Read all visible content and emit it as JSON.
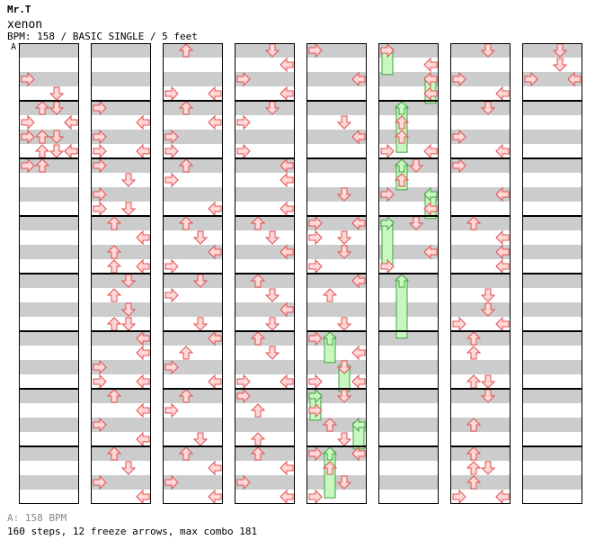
{
  "header": {
    "artist": "Mr.T",
    "title": "xenon",
    "info": "BPM: 158 / BASIC SINGLE / 5 feet"
  },
  "bpm_marker": {
    "label": "A"
  },
  "footer": {
    "bpm_legend": "A: 158 BPM",
    "stats": "160 steps, 12 freeze arrows, max combo 181"
  },
  "colors": {
    "arrow_fill": "#ffd8d8",
    "arrow_stroke": "#e05050",
    "freeze_fill": "#c8f8c0",
    "freeze_stroke": "#40a040",
    "band": "#cccccc",
    "frame": "#000000"
  },
  "chart_data": {
    "type": "step-chart",
    "columns": 8,
    "measures_per_column": 8,
    "rows_per_measure": 4,
    "lanes": [
      "left",
      "down",
      "up",
      "right"
    ],
    "arrows": [
      {
        "m": 0,
        "r": 2,
        "l": 0
      },
      {
        "m": 0,
        "r": 3,
        "l": 2
      },
      {
        "m": 0,
        "r": 4,
        "l": 1
      },
      {
        "m": 0,
        "r": 5,
        "l": 3
      },
      {
        "m": 0,
        "r": 6,
        "l": 0
      },
      {
        "m": 0,
        "r": 6,
        "l": 1
      },
      {
        "m": 0,
        "r": 7,
        "l": 2
      },
      {
        "m": 0,
        "r": 7,
        "l": 3
      },
      {
        "m": 1,
        "r": 0,
        "l": 2
      },
      {
        "m": 1,
        "r": 1,
        "l": 0
      },
      {
        "m": 1,
        "r": 1,
        "l": 3
      },
      {
        "m": 1,
        "r": 2,
        "l": 2
      },
      {
        "m": 1,
        "r": 3,
        "l": 1
      },
      {
        "m": 1,
        "r": 3,
        "l": 3
      },
      {
        "m": 1,
        "r": 4,
        "l": 0
      },
      {
        "m": 1,
        "r": 4,
        "l": 1
      },
      {
        "m": 9,
        "r": 0,
        "l": 0
      },
      {
        "m": 9,
        "r": 1,
        "l": 3
      },
      {
        "m": 9,
        "r": 2,
        "l": 0
      },
      {
        "m": 9,
        "r": 3,
        "l": 0
      },
      {
        "m": 9,
        "r": 3,
        "l": 3
      },
      {
        "m": 10,
        "r": 0,
        "l": 0
      },
      {
        "m": 10,
        "r": 1,
        "l": 2
      },
      {
        "m": 10,
        "r": 2,
        "l": 0
      },
      {
        "m": 10,
        "r": 3,
        "l": 0
      },
      {
        "m": 10,
        "r": 3,
        "l": 2
      },
      {
        "m": 11,
        "r": 0,
        "l": 1
      },
      {
        "m": 11,
        "r": 1,
        "l": 3
      },
      {
        "m": 11,
        "r": 2,
        "l": 1
      },
      {
        "m": 11,
        "r": 3,
        "l": 1
      },
      {
        "m": 11,
        "r": 3,
        "l": 3
      },
      {
        "m": 12,
        "r": 0,
        "l": 2
      },
      {
        "m": 12,
        "r": 1,
        "l": 1
      },
      {
        "m": 12,
        "r": 2,
        "l": 2
      },
      {
        "m": 12,
        "r": 3,
        "l": 1
      },
      {
        "m": 12,
        "r": 3,
        "l": 2
      },
      {
        "m": 13,
        "r": 0,
        "l": 3
      },
      {
        "m": 13,
        "r": 1,
        "l": 3
      },
      {
        "m": 13,
        "r": 2,
        "l": 0
      },
      {
        "m": 13,
        "r": 3,
        "l": 0
      },
      {
        "m": 13,
        "r": 3,
        "l": 3
      },
      {
        "m": 14,
        "r": 0,
        "l": 1
      },
      {
        "m": 14,
        "r": 1,
        "l": 3
      },
      {
        "m": 14,
        "r": 2,
        "l": 0
      },
      {
        "m": 14,
        "r": 3,
        "l": 3
      },
      {
        "m": 15,
        "r": 0,
        "l": 1
      },
      {
        "m": 15,
        "r": 1,
        "l": 2
      },
      {
        "m": 15,
        "r": 2,
        "l": 0
      },
      {
        "m": 15,
        "r": 3,
        "l": 3
      },
      {
        "m": 16,
        "r": 0,
        "l": 1
      },
      {
        "m": 16,
        "r": 3,
        "l": 0
      },
      {
        "m": 16,
        "r": 3,
        "l": 3
      },
      {
        "m": 17,
        "r": 0,
        "l": 1
      },
      {
        "m": 17,
        "r": 1,
        "l": 3
      },
      {
        "m": 17,
        "r": 2,
        "l": 0
      },
      {
        "m": 17,
        "r": 3,
        "l": 0
      },
      {
        "m": 18,
        "r": 0,
        "l": 1
      },
      {
        "m": 18,
        "r": 1,
        "l": 0
      },
      {
        "m": 18,
        "r": 3,
        "l": 3
      },
      {
        "m": 19,
        "r": 0,
        "l": 1
      },
      {
        "m": 19,
        "r": 1,
        "l": 2
      },
      {
        "m": 19,
        "r": 2,
        "l": 3
      },
      {
        "m": 19,
        "r": 3,
        "l": 0
      },
      {
        "m": 20,
        "r": 0,
        "l": 2
      },
      {
        "m": 20,
        "r": 1,
        "l": 0
      },
      {
        "m": 20,
        "r": 3,
        "l": 2
      },
      {
        "m": 21,
        "r": 0,
        "l": 3
      },
      {
        "m": 21,
        "r": 1,
        "l": 1
      },
      {
        "m": 21,
        "r": 2,
        "l": 0
      },
      {
        "m": 21,
        "r": 3,
        "l": 3
      },
      {
        "m": 22,
        "r": 0,
        "l": 1
      },
      {
        "m": 22,
        "r": 1,
        "l": 0
      },
      {
        "m": 22,
        "r": 3,
        "l": 2
      },
      {
        "m": 23,
        "r": 0,
        "l": 1
      },
      {
        "m": 23,
        "r": 1,
        "l": 3
      },
      {
        "m": 23,
        "r": 2,
        "l": 0
      },
      {
        "m": 23,
        "r": 3,
        "l": 3
      },
      {
        "m": 24,
        "r": 0,
        "l": 2
      },
      {
        "m": 24,
        "r": 1,
        "l": 3
      },
      {
        "m": 24,
        "r": 2,
        "l": 0
      },
      {
        "m": 24,
        "r": 3,
        "l": 3
      },
      {
        "m": 25,
        "r": 0,
        "l": 2
      },
      {
        "m": 25,
        "r": 1,
        "l": 0
      },
      {
        "m": 25,
        "r": 3,
        "l": 0
      },
      {
        "m": 26,
        "r": 0,
        "l": 3
      },
      {
        "m": 26,
        "r": 1,
        "l": 3
      },
      {
        "m": 26,
        "r": 3,
        "l": 3
      },
      {
        "m": 27,
        "r": 0,
        "l": 1
      },
      {
        "m": 27,
        "r": 1,
        "l": 2
      },
      {
        "m": 27,
        "r": 2,
        "l": 3
      },
      {
        "m": 28,
        "r": 0,
        "l": 1
      },
      {
        "m": 28,
        "r": 1,
        "l": 2
      },
      {
        "m": 28,
        "r": 2,
        "l": 3
      },
      {
        "m": 28,
        "r": 3,
        "l": 2
      },
      {
        "m": 29,
        "r": 0,
        "l": 1
      },
      {
        "m": 29,
        "r": 1,
        "l": 2
      },
      {
        "m": 29,
        "r": 3,
        "l": 0
      },
      {
        "m": 29,
        "r": 3,
        "l": 3
      },
      {
        "m": 30,
        "r": 0,
        "l": 0
      },
      {
        "m": 30,
        "r": 1,
        "l": 1
      },
      {
        "m": 30,
        "r": 3,
        "l": 1
      },
      {
        "m": 31,
        "r": 0,
        "l": 1
      },
      {
        "m": 31,
        "r": 1,
        "l": 3
      },
      {
        "m": 31,
        "r": 2,
        "l": 0
      },
      {
        "m": 31,
        "r": 3,
        "l": 3
      },
      {
        "m": 32,
        "r": 0,
        "l": 0
      },
      {
        "m": 32,
        "r": 2,
        "l": 3
      },
      {
        "m": 33,
        "r": 1,
        "l": 2
      },
      {
        "m": 33,
        "r": 2,
        "l": 3
      },
      {
        "m": 34,
        "r": 2,
        "l": 2
      },
      {
        "m": 35,
        "r": 0,
        "l": 0
      },
      {
        "m": 35,
        "r": 0,
        "l": 3
      },
      {
        "m": 35,
        "r": 1,
        "l": 0
      },
      {
        "m": 35,
        "r": 1,
        "l": 2
      },
      {
        "m": 35,
        "r": 2,
        "l": 2
      },
      {
        "m": 35,
        "r": 3,
        "l": 0
      },
      {
        "m": 36,
        "r": 0,
        "l": 3
      },
      {
        "m": 36,
        "r": 1,
        "l": 1
      },
      {
        "m": 36,
        "r": 3,
        "l": 2
      },
      {
        "m": 37,
        "r": 0,
        "l": 0
      },
      {
        "m": 37,
        "r": 1,
        "l": 3
      },
      {
        "m": 37,
        "r": 2,
        "l": 2
      },
      {
        "m": 37,
        "r": 3,
        "l": 0
      },
      {
        "m": 37,
        "r": 3,
        "l": 3
      },
      {
        "m": 38,
        "r": 0,
        "l": 2
      },
      {
        "m": 38,
        "r": 1,
        "l": 0
      },
      {
        "m": 38,
        "r": 2,
        "l": 1
      },
      {
        "m": 38,
        "r": 3,
        "l": 2
      },
      {
        "m": 39,
        "r": 0,
        "l": 0
      },
      {
        "m": 39,
        "r": 0,
        "l": 3
      },
      {
        "m": 39,
        "r": 1,
        "l": 1
      },
      {
        "m": 39,
        "r": 2,
        "l": 2
      },
      {
        "m": 39,
        "r": 3,
        "l": 0
      },
      {
        "m": 40,
        "r": 0,
        "l": 0
      },
      {
        "m": 40,
        "r": 1,
        "l": 3
      },
      {
        "m": 40,
        "r": 2,
        "l": 3
      },
      {
        "m": 40,
        "r": 3,
        "l": 3
      },
      {
        "m": 41,
        "r": 1,
        "l": 1
      },
      {
        "m": 41,
        "r": 2,
        "l": 1
      },
      {
        "m": 41,
        "r": 3,
        "l": 0
      },
      {
        "m": 41,
        "r": 3,
        "l": 3
      },
      {
        "m": 42,
        "r": 0,
        "l": 2
      },
      {
        "m": 42,
        "r": 1,
        "l": 1
      },
      {
        "m": 42,
        "r": 2,
        "l": 0
      },
      {
        "m": 42,
        "r": 3,
        "l": 3
      },
      {
        "m": 43,
        "r": 0,
        "l": 2
      },
      {
        "m": 43,
        "r": 2,
        "l": 3
      },
      {
        "m": 43,
        "r": 3,
        "l": 0
      },
      {
        "m": 48,
        "r": 0,
        "l": 2
      },
      {
        "m": 48,
        "r": 2,
        "l": 0
      },
      {
        "m": 48,
        "r": 3,
        "l": 3
      },
      {
        "m": 49,
        "r": 0,
        "l": 2
      },
      {
        "m": 49,
        "r": 2,
        "l": 0
      },
      {
        "m": 49,
        "r": 3,
        "l": 3
      },
      {
        "m": 50,
        "r": 0,
        "l": 0
      },
      {
        "m": 50,
        "r": 2,
        "l": 3
      },
      {
        "m": 51,
        "r": 0,
        "l": 1
      },
      {
        "m": 51,
        "r": 1,
        "l": 3
      },
      {
        "m": 51,
        "r": 2,
        "l": 3
      },
      {
        "m": 51,
        "r": 3,
        "l": 3
      },
      {
        "m": 52,
        "r": 1,
        "l": 2
      },
      {
        "m": 52,
        "r": 2,
        "l": 2
      },
      {
        "m": 52,
        "r": 3,
        "l": 0
      },
      {
        "m": 52,
        "r": 3,
        "l": 3
      },
      {
        "m": 53,
        "r": 0,
        "l": 1
      },
      {
        "m": 53,
        "r": 1,
        "l": 1
      },
      {
        "m": 53,
        "r": 3,
        "l": 1
      },
      {
        "m": 53,
        "r": 3,
        "l": 2
      },
      {
        "m": 54,
        "r": 0,
        "l": 2
      },
      {
        "m": 54,
        "r": 2,
        "l": 1
      },
      {
        "m": 55,
        "r": 0,
        "l": 1
      },
      {
        "m": 55,
        "r": 1,
        "l": 1
      },
      {
        "m": 55,
        "r": 1,
        "l": 2
      },
      {
        "m": 55,
        "r": 2,
        "l": 1
      },
      {
        "m": 55,
        "r": 3,
        "l": 0
      },
      {
        "m": 55,
        "r": 3,
        "l": 3
      },
      {
        "m": 56,
        "r": 0,
        "l": 2
      },
      {
        "m": 56,
        "r": 1,
        "l": 2
      },
      {
        "m": 56,
        "r": 2,
        "l": 0
      },
      {
        "m": 56,
        "r": 2,
        "l": 3
      }
    ],
    "freezes": [
      {
        "m": 37,
        "r0": 0,
        "r1": 1.3,
        "l": 1
      },
      {
        "m": 37,
        "r0": 2,
        "r1": 3.3,
        "l": 2
      },
      {
        "m": 38,
        "r0": 0,
        "r1": 1.3,
        "l": 0
      },
      {
        "m": 38,
        "r0": 2,
        "r1": 3.3,
        "l": 3
      },
      {
        "m": 39,
        "r0": 0,
        "r1": 2.7,
        "l": 1
      },
      {
        "m": 40,
        "r0": 0,
        "r1": 1.3,
        "l": 0
      },
      {
        "m": 40,
        "r0": 2,
        "r1": 3.3,
        "l": 3
      },
      {
        "m": 41,
        "r0": 0,
        "r1": 2.7,
        "l": 1
      },
      {
        "m": 42,
        "r0": 0,
        "r1": 1.3,
        "l": 1
      },
      {
        "m": 42,
        "r0": 2,
        "r1": 3.3,
        "l": 3
      },
      {
        "m": 43,
        "r0": 0,
        "r1": 2.7,
        "l": 0
      },
      {
        "m": 44,
        "r0": 0,
        "r1": 3.6,
        "l": 1
      }
    ]
  }
}
